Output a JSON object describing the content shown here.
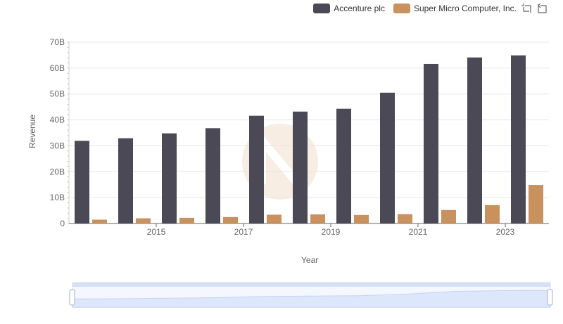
{
  "chart_data": {
    "type": "bar",
    "x": [
      2014,
      2015,
      2016,
      2017,
      2018,
      2019,
      2020,
      2021,
      2022,
      2023,
      2024
    ],
    "x_ticks": [
      "2015",
      "2017",
      "2019",
      "2021",
      "2023"
    ],
    "xlabel": "Year",
    "ylabel": "Revenue",
    "ylim": [
      0,
      70000000000
    ],
    "y_ticks": [
      "0",
      "10B",
      "20B",
      "30B",
      "40B",
      "50B",
      "60B",
      "70B"
    ],
    "grid": true,
    "legend_position": "top-right",
    "series": [
      {
        "name": "Accenture plc",
        "color": "#4a4955",
        "values": [
          31900000000,
          32900000000,
          34800000000,
          36800000000,
          41600000000,
          43200000000,
          44300000000,
          50500000000,
          61600000000,
          64100000000,
          64900000000
        ]
      },
      {
        "name": "Super Micro Computer, Inc.",
        "color": "#c9915d",
        "values": [
          1500000000,
          2000000000,
          2200000000,
          2500000000,
          3400000000,
          3500000000,
          3300000000,
          3600000000,
          5200000000,
          7100000000,
          14900000000
        ]
      }
    ]
  },
  "toolbar": {
    "zoom_icon": "zoom-select-icon",
    "restore_icon": "restore-icon"
  }
}
